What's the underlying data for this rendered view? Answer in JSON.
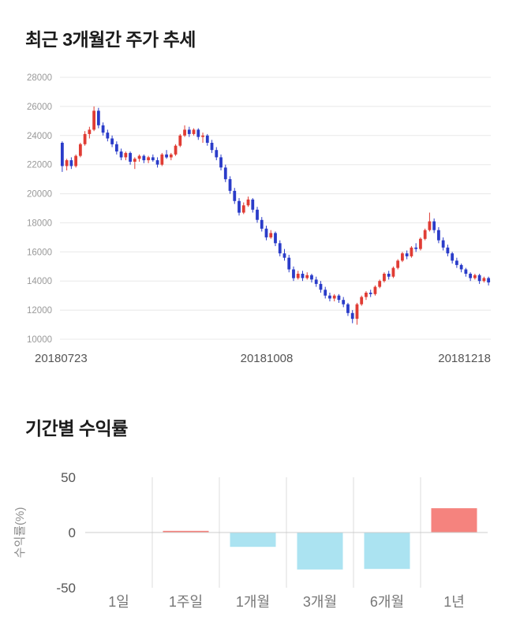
{
  "page": {
    "background": "#ffffff"
  },
  "chart_data": [
    {
      "type": "candlestick",
      "title": "최근 3개월간 주가 추세",
      "x_labels": [
        "20180723",
        "20181008",
        "20181218"
      ],
      "ylim": [
        10000,
        28000
      ],
      "y_tick_step": 2000,
      "y_ticks": [
        "10000",
        "12000",
        "14000",
        "16000",
        "18000",
        "20000",
        "22000",
        "24000",
        "26000",
        "28000"
      ],
      "up_color": "#e03c34",
      "down_color": "#2a3cc9",
      "grid_color": "#e8e8e8",
      "grid": true,
      "legend": false,
      "candles_format": "open,high,low,close",
      "candles": [
        [
          23500,
          23600,
          21500,
          21900
        ],
        [
          21900,
          22400,
          21600,
          22300
        ],
        [
          22300,
          22500,
          21700,
          21900
        ],
        [
          21900,
          22700,
          21800,
          22600
        ],
        [
          22600,
          23500,
          22500,
          23400
        ],
        [
          23400,
          24300,
          23300,
          24100
        ],
        [
          24100,
          24600,
          23800,
          24400
        ],
        [
          24400,
          26000,
          24300,
          25700
        ],
        [
          25700,
          25900,
          24500,
          24700
        ],
        [
          24700,
          24900,
          24000,
          24200
        ],
        [
          24200,
          24400,
          23600,
          23800
        ],
        [
          23800,
          24000,
          23200,
          23400
        ],
        [
          23400,
          23600,
          22700,
          22900
        ],
        [
          22900,
          23100,
          22300,
          22500
        ],
        [
          22500,
          22900,
          22300,
          22800
        ],
        [
          22800,
          22900,
          22000,
          22200
        ],
        [
          22200,
          22500,
          21700,
          22400
        ],
        [
          22400,
          22700,
          22200,
          22600
        ],
        [
          22600,
          22700,
          22100,
          22300
        ],
        [
          22300,
          22600,
          22100,
          22500
        ],
        [
          22500,
          22700,
          22200,
          22300
        ],
        [
          22300,
          22500,
          21800,
          22000
        ],
        [
          22000,
          22800,
          21900,
          22700
        ],
        [
          22700,
          23000,
          22400,
          22500
        ],
        [
          22500,
          22800,
          22300,
          22700
        ],
        [
          22700,
          23400,
          22600,
          23300
        ],
        [
          23300,
          24100,
          23200,
          24000
        ],
        [
          24000,
          24700,
          23900,
          24400
        ],
        [
          24400,
          24600,
          23900,
          24100
        ],
        [
          24100,
          24500,
          24000,
          24400
        ],
        [
          24400,
          24500,
          23700,
          23900
        ],
        [
          23900,
          24200,
          23500,
          24000
        ],
        [
          24000,
          24100,
          23300,
          23500
        ],
        [
          23500,
          23700,
          22800,
          23000
        ],
        [
          23000,
          23200,
          22300,
          22500
        ],
        [
          22500,
          22700,
          21600,
          21800
        ],
        [
          21800,
          22000,
          20800,
          21000
        ],
        [
          21000,
          21200,
          20000,
          20200
        ],
        [
          20200,
          20400,
          19300,
          19500
        ],
        [
          19500,
          19700,
          18500,
          18700
        ],
        [
          18700,
          19400,
          18600,
          19200
        ],
        [
          19200,
          19800,
          19100,
          19600
        ],
        [
          19600,
          19700,
          18700,
          18900
        ],
        [
          18900,
          19100,
          18000,
          18200
        ],
        [
          18200,
          18400,
          17400,
          17600
        ],
        [
          17600,
          17800,
          16800,
          17000
        ],
        [
          17000,
          17500,
          16900,
          17300
        ],
        [
          17300,
          17400,
          16400,
          16600
        ],
        [
          16600,
          16800,
          15700,
          15900
        ],
        [
          15900,
          16200,
          15400,
          15600
        ],
        [
          15600,
          15800,
          14600,
          14800
        ],
        [
          14800,
          15000,
          14000,
          14200
        ],
        [
          14200,
          14700,
          14100,
          14500
        ],
        [
          14500,
          14700,
          14000,
          14200
        ],
        [
          14200,
          14600,
          14100,
          14400
        ],
        [
          14400,
          14500,
          13900,
          14100
        ],
        [
          14100,
          14300,
          13600,
          13800
        ],
        [
          13800,
          14000,
          13200,
          13400
        ],
        [
          13400,
          13600,
          12800,
          13000
        ],
        [
          13000,
          13200,
          12600,
          12800
        ],
        [
          12800,
          13100,
          12600,
          13000
        ],
        [
          13000,
          13100,
          12500,
          12700
        ],
        [
          12700,
          12900,
          12200,
          12400
        ],
        [
          12400,
          12500,
          11600,
          11800
        ],
        [
          11800,
          12000,
          11100,
          11400
        ],
        [
          11400,
          12500,
          11000,
          12400
        ],
        [
          12400,
          13000,
          12300,
          12900
        ],
        [
          12900,
          13300,
          12700,
          13200
        ],
        [
          13200,
          13400,
          12900,
          13100
        ],
        [
          13100,
          13700,
          13000,
          13600
        ],
        [
          13600,
          14100,
          13500,
          14000
        ],
        [
          14000,
          14600,
          13900,
          14500
        ],
        [
          14500,
          14700,
          14100,
          14300
        ],
        [
          14300,
          15000,
          14200,
          14900
        ],
        [
          14900,
          15500,
          14800,
          15400
        ],
        [
          15400,
          16000,
          15300,
          15900
        ],
        [
          15900,
          16100,
          15500,
          15700
        ],
        [
          15700,
          16400,
          15600,
          16300
        ],
        [
          16300,
          16600,
          16000,
          16200
        ],
        [
          16200,
          17000,
          16100,
          16900
        ],
        [
          16900,
          17600,
          16800,
          17500
        ],
        [
          17500,
          18700,
          17400,
          18100
        ],
        [
          18100,
          18300,
          17300,
          17500
        ],
        [
          17500,
          17700,
          16600,
          16800
        ],
        [
          16800,
          17000,
          16100,
          16300
        ],
        [
          16300,
          16500,
          15700,
          15900
        ],
        [
          15900,
          16000,
          15200,
          15400
        ],
        [
          15400,
          15600,
          14900,
          15100
        ],
        [
          15100,
          15200,
          14600,
          14800
        ],
        [
          14800,
          14900,
          14300,
          14500
        ],
        [
          14500,
          14600,
          14000,
          14200
        ],
        [
          14200,
          14500,
          14100,
          14400
        ],
        [
          14400,
          14500,
          13800,
          14000
        ],
        [
          14000,
          14300,
          13900,
          14200
        ],
        [
          14200,
          14300,
          13700,
          13900
        ]
      ]
    },
    {
      "type": "bar",
      "title": "기간별 수익률",
      "ylabel": "수익률(%)",
      "categories": [
        "1일",
        "1주일",
        "1개월",
        "3개월",
        "6개월",
        "1년"
      ],
      "values": [
        0,
        1.5,
        -13,
        -33.5,
        -33,
        22
      ],
      "ylim": [
        -50,
        50
      ],
      "y_ticks": [
        "50",
        "0",
        "-50"
      ],
      "positive_color": "#f5837e",
      "negative_color": "#abe3f1",
      "grid_color": "#dddddd",
      "axis_color": "#cccccc",
      "grid": true,
      "legend": false
    }
  ]
}
